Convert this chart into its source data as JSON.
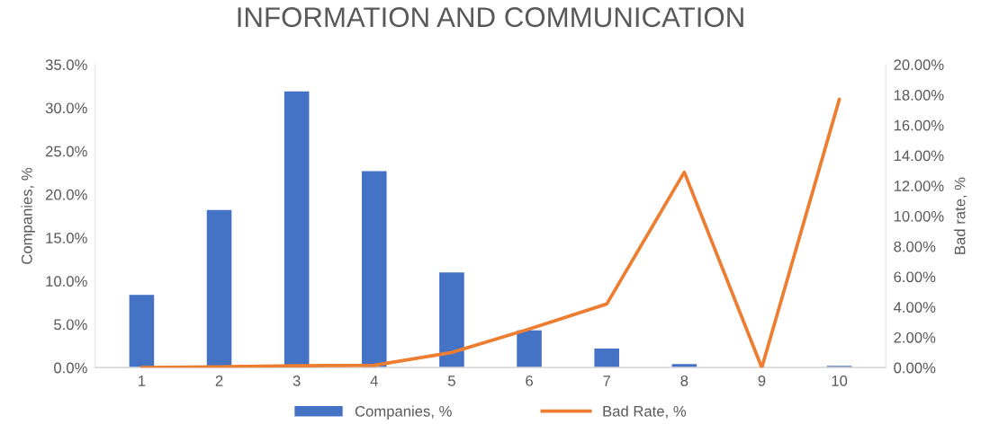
{
  "chart_data": {
    "type": "bar",
    "title": "INFORMATION AND COMMUNICATION",
    "ylabel": "Companies, %",
    "y2label": "Bad rate, %",
    "categories": [
      "1",
      "2",
      "3",
      "4",
      "5",
      "6",
      "7",
      "8",
      "9",
      "10"
    ],
    "series": [
      {
        "name": "Companies, %",
        "color": "#4472c4",
        "values": [
          8.4,
          18.2,
          31.9,
          22.7,
          11.0,
          4.3,
          2.2,
          0.4,
          0,
          0.2
        ]
      },
      {
        "name": "Bad Rate, %",
        "type": "line",
        "axis": "y2",
        "color": "#ed7d31",
        "values": [
          0.0,
          0.05,
          0.13,
          0.15,
          1.0,
          2.55,
          4.2,
          12.9,
          0.0,
          17.7
        ]
      }
    ],
    "ylim": [
      0,
      35
    ],
    "yticks": [
      {
        "value": 0,
        "label": "0.0%"
      },
      {
        "value": 5,
        "label": "5.0%"
      },
      {
        "value": 10,
        "label": "10.0%"
      },
      {
        "value": 15,
        "label": "15.0%"
      },
      {
        "value": 20,
        "label": "20.0%"
      },
      {
        "value": 25,
        "label": "25.0%"
      },
      {
        "value": 30,
        "label": "30.0%"
      },
      {
        "value": 35,
        "label": "35.0%"
      }
    ],
    "y2lim": [
      0,
      20
    ],
    "y2ticks": [
      {
        "value": 0,
        "label": "0.00%"
      },
      {
        "value": 2,
        "label": "2.00%"
      },
      {
        "value": 4,
        "label": "4.00%"
      },
      {
        "value": 6,
        "label": "6.00%"
      },
      {
        "value": 8,
        "label": "8.00%"
      },
      {
        "value": 10,
        "label": "10.00%"
      },
      {
        "value": 12,
        "label": "12.00%"
      },
      {
        "value": 14,
        "label": "14.00%"
      },
      {
        "value": 16,
        "label": "16.00%"
      },
      {
        "value": 18,
        "label": "18.00%"
      },
      {
        "value": 20,
        "label": "20.00%"
      }
    ],
    "grid": false,
    "legend": "bottom"
  }
}
